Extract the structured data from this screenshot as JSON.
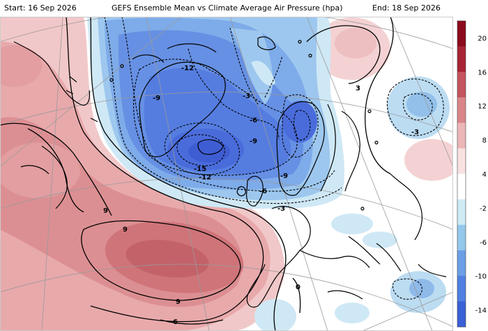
{
  "header": {
    "start": "Start: 16 Sep 2026",
    "title": "GEFS Ensemble Mean vs Climate Average Air Pressure (hpa)",
    "end": "End: 18 Sep 2026"
  },
  "contour_labels": [
    {
      "id": "neg12-top",
      "text": "-12"
    },
    {
      "id": "neg9-greenland",
      "text": "-9"
    },
    {
      "id": "neg3-north",
      "text": "-3"
    },
    {
      "id": "neg6-center",
      "text": "-6"
    },
    {
      "id": "neg9-center",
      "text": "-9"
    },
    {
      "id": "neg15-iceland",
      "text": "-15"
    },
    {
      "id": "neg12-iceland",
      "text": "-12"
    },
    {
      "id": "neg9-norway",
      "text": "-9"
    },
    {
      "id": "neg6-scotland",
      "text": "-6"
    },
    {
      "id": "neg3-uk",
      "text": "-3"
    },
    {
      "id": "neg3-russia",
      "text": "-3"
    },
    {
      "id": "pos9-west",
      "text": "9"
    },
    {
      "id": "pos9-mid",
      "text": "9"
    },
    {
      "id": "pos9-south",
      "text": "9"
    },
    {
      "id": "pos6-south",
      "text": "6"
    },
    {
      "id": "zero-spain",
      "text": "0"
    },
    {
      "id": "pos3-east",
      "text": "3"
    }
  ],
  "colorbar": {
    "labels": [
      "20",
      "16",
      "12",
      "8",
      "4",
      "-2",
      "-6",
      "-10",
      "-14"
    ],
    "colors": [
      "#8b0a1c",
      "#a82434",
      "#c4545e",
      "#d9858a",
      "#ecb6b7",
      "#f8e1e1",
      "#ffffff",
      "#cdeaf5",
      "#93c8ec",
      "#6a9fe6",
      "#4f7fe0",
      "#3a60d6"
    ]
  }
}
